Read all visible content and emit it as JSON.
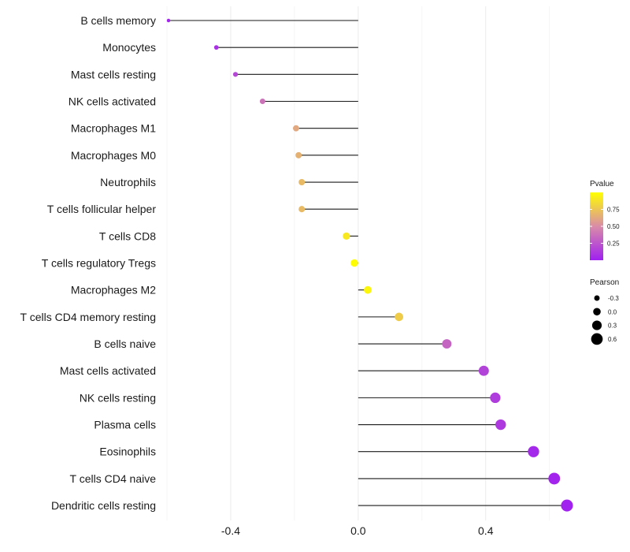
{
  "chart_data": {
    "type": "lollipop",
    "xlabel": "",
    "ylabel": "",
    "xlim": [
      -0.6,
      0.66
    ],
    "x_ticks": [
      -0.4,
      0.0,
      0.4
    ],
    "x_tick_labels": [
      "-0.4",
      "0.0",
      "0.4"
    ],
    "baseline": 0,
    "categories": [
      "B cells memory",
      "Monocytes",
      "Mast cells resting",
      "NK cells activated",
      "Macrophages M1",
      "Macrophages M0",
      "Neutrophils",
      "T cells follicular helper",
      "T cells CD8",
      "T cells regulatory  Tregs ",
      "Macrophages M2",
      "T cells CD4 memory resting",
      "B cells naive",
      "Mast cells activated",
      "NK cells resting",
      "Plasma cells",
      "Eosinophils",
      "T cells CD4 naive",
      "Dendritic cells resting"
    ],
    "pearson": [
      -0.595,
      -0.445,
      -0.385,
      -0.3,
      -0.195,
      -0.187,
      -0.177,
      -0.177,
      -0.037,
      -0.012,
      0.03,
      0.128,
      0.278,
      0.394,
      0.43,
      0.447,
      0.55,
      0.615,
      0.655
    ],
    "pvalue": [
      0.02,
      0.08,
      0.18,
      0.38,
      0.62,
      0.66,
      0.7,
      0.7,
      0.9,
      0.99,
      0.96,
      0.78,
      0.32,
      0.16,
      0.13,
      0.12,
      0.04,
      0.02,
      0.01
    ],
    "legend_pvalue": {
      "title": "Pvalue",
      "ticks": [
        0.25,
        0.5,
        0.75
      ],
      "tick_labels": [
        "0.25",
        "0.50",
        "0.75"
      ],
      "range": [
        0.0,
        1.0
      ],
      "color_low": "#A020F0",
      "color_mid": "#D98CA8",
      "color_high": "#FFFF00"
    },
    "legend_pearson": {
      "title": "Pearson",
      "values": [
        -0.3,
        0.0,
        0.3,
        0.6
      ],
      "labels": [
        "-0.3",
        "0.0",
        "0.3",
        "0.6"
      ]
    }
  }
}
